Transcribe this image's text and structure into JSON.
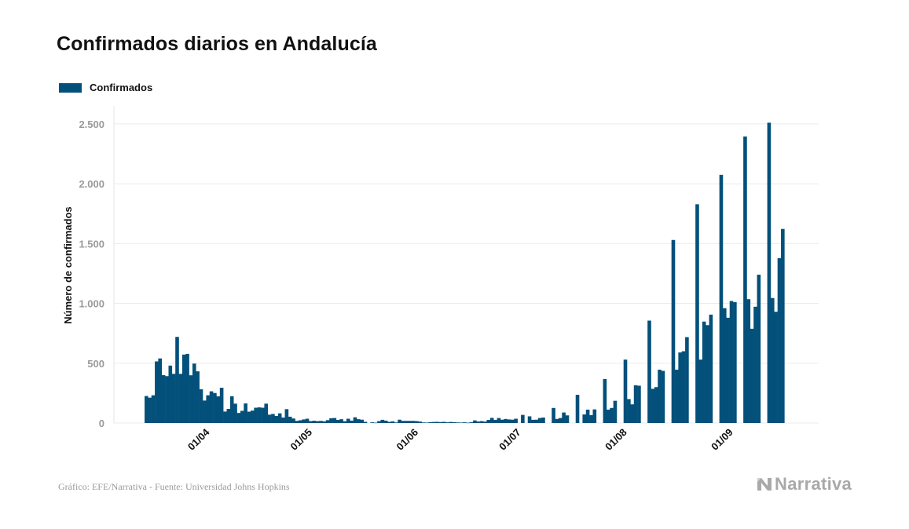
{
  "title": "Confirmados diarios en Andalucía",
  "legend": {
    "label": "Confirmados",
    "color": "#03507a"
  },
  "footer": {
    "source": "Gráfico: EFE/Narrativa - Fuente: Universidad Johns Hopkins",
    "brand": "Narrativa",
    "brand_icon": "narrativa-logo-icon"
  },
  "chart_data": {
    "type": "bar",
    "title": "Confirmados diarios en Andalucía",
    "xlabel": "",
    "ylabel": "Número de confirmados",
    "ylim": [
      0,
      2650
    ],
    "yticks": [
      0,
      500,
      1000,
      1500,
      2000,
      2500
    ],
    "ytick_labels": [
      "0",
      "500",
      "1.000",
      "1.500",
      "2.000",
      "2.500"
    ],
    "x_start": "2020-03-16",
    "xticks": [
      "2020-04-01",
      "2020-05-01",
      "2020-06-01",
      "2020-07-01",
      "2020-08-01",
      "2020-09-01"
    ],
    "xtick_labels": [
      "01/04",
      "01/05",
      "01/06",
      "01/07",
      "01/08",
      "01/09"
    ],
    "grid": true,
    "legend_position": "top-left",
    "bar_color": "#03507a",
    "series": [
      {
        "name": "Confirmados",
        "values": [
          226,
          212,
          232,
          515,
          540,
          400,
          392,
          480,
          411,
          720,
          411,
          572,
          578,
          399,
          497,
          432,
          282,
          188,
          232,
          265,
          251,
          223,
          295,
          96,
          118,
          224,
          162,
          84,
          102,
          164,
          95,
          104,
          128,
          131,
          128,
          162,
          70,
          76,
          59,
          81,
          46,
          116,
          53,
          38,
          18,
          23,
          30,
          36,
          16,
          19,
          16,
          18,
          14,
          24,
          40,
          42,
          26,
          32,
          15,
          36,
          20,
          48,
          32,
          28,
          10,
          0,
          6,
          3,
          16,
          27,
          20,
          10,
          14,
          5,
          28,
          18,
          18,
          18,
          18,
          16,
          12,
          5,
          4,
          7,
          9,
          10,
          8,
          10,
          6,
          9,
          7,
          5,
          4,
          6,
          3,
          7,
          22,
          13,
          16,
          12,
          26,
          43,
          26,
          42,
          28,
          34,
          30,
          28,
          36,
          0,
          68,
          0,
          56,
          27,
          28,
          42,
          46,
          0,
          0,
          126,
          34,
          42,
          88,
          64,
          0,
          0,
          236,
          0,
          72,
          112,
          66,
          114,
          0,
          0,
          368,
          112,
          126,
          186,
          0,
          0,
          530,
          200,
          156,
          316,
          312,
          0,
          0,
          856,
          286,
          300,
          446,
          436,
          0,
          0,
          1530,
          446,
          590,
          600,
          718,
          0,
          0,
          1828,
          530,
          848,
          818,
          906,
          0,
          0,
          2074,
          960,
          880,
          1020,
          1010,
          0,
          0,
          2395,
          1035,
          788,
          972,
          1240,
          0,
          0,
          2510,
          1045,
          930,
          1378,
          1622,
          0,
          0
        ]
      }
    ]
  }
}
